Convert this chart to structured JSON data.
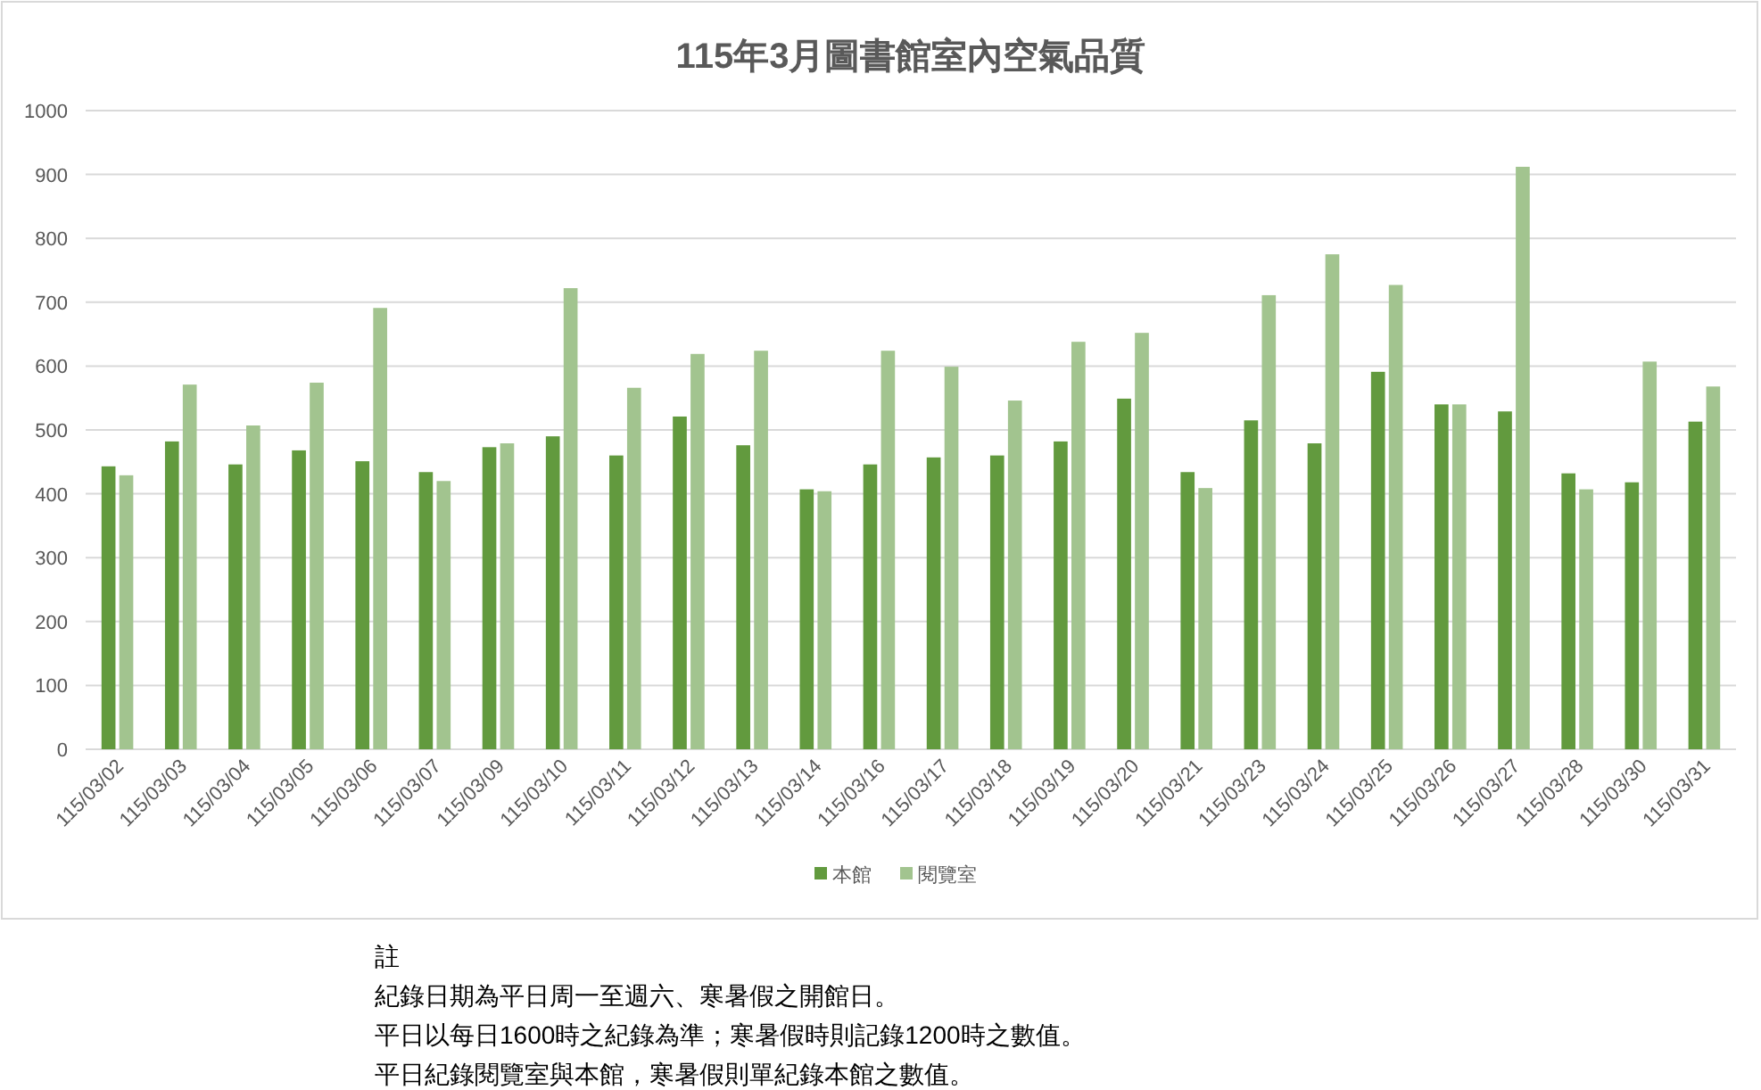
{
  "chart_data": {
    "type": "bar",
    "title": "115年3月圖書館室內空氣品質",
    "categories": [
      "115/03/02",
      "115/03/03",
      "115/03/04",
      "115/03/05",
      "115/03/06",
      "115/03/07",
      "115/03/09",
      "115/03/10",
      "115/03/11",
      "115/03/12",
      "115/03/13",
      "115/03/14",
      "115/03/16",
      "115/03/17",
      "115/03/18",
      "115/03/19",
      "115/03/20",
      "115/03/21",
      "115/03/23",
      "115/03/24",
      "115/03/25",
      "115/03/26",
      "115/03/27",
      "115/03/28",
      "115/03/30",
      "115/03/31"
    ],
    "series": [
      {
        "name": "本館",
        "color": "#629a3e",
        "values": [
          443,
          482,
          446,
          468,
          451,
          434,
          473,
          490,
          460,
          521,
          476,
          407,
          446,
          457,
          460,
          482,
          549,
          434,
          515,
          479,
          591,
          540,
          529,
          432,
          418,
          513
        ]
      },
      {
        "name": "閱覽室",
        "color": "#a2c48f",
        "values": [
          429,
          571,
          507,
          574,
          691,
          420,
          479,
          722,
          566,
          619,
          624,
          404,
          624,
          599,
          546,
          638,
          652,
          409,
          711,
          775,
          727,
          540,
          912,
          407,
          607,
          568
        ]
      }
    ],
    "ylim": [
      0,
      1000
    ],
    "yticks": [
      0,
      100,
      200,
      300,
      400,
      500,
      600,
      700,
      800,
      900,
      1000
    ],
    "grid": "y",
    "legend": "bottom",
    "annotations": [
      "註",
      "紀錄日期為平日周一至週六、寒暑假之開館日。",
      "平日以每日1600時之紀錄為準；寒暑假時則記錄1200時之數值。",
      "平日紀錄閱覽室與本館，寒暑假則單紀錄本館之數值。"
    ]
  }
}
